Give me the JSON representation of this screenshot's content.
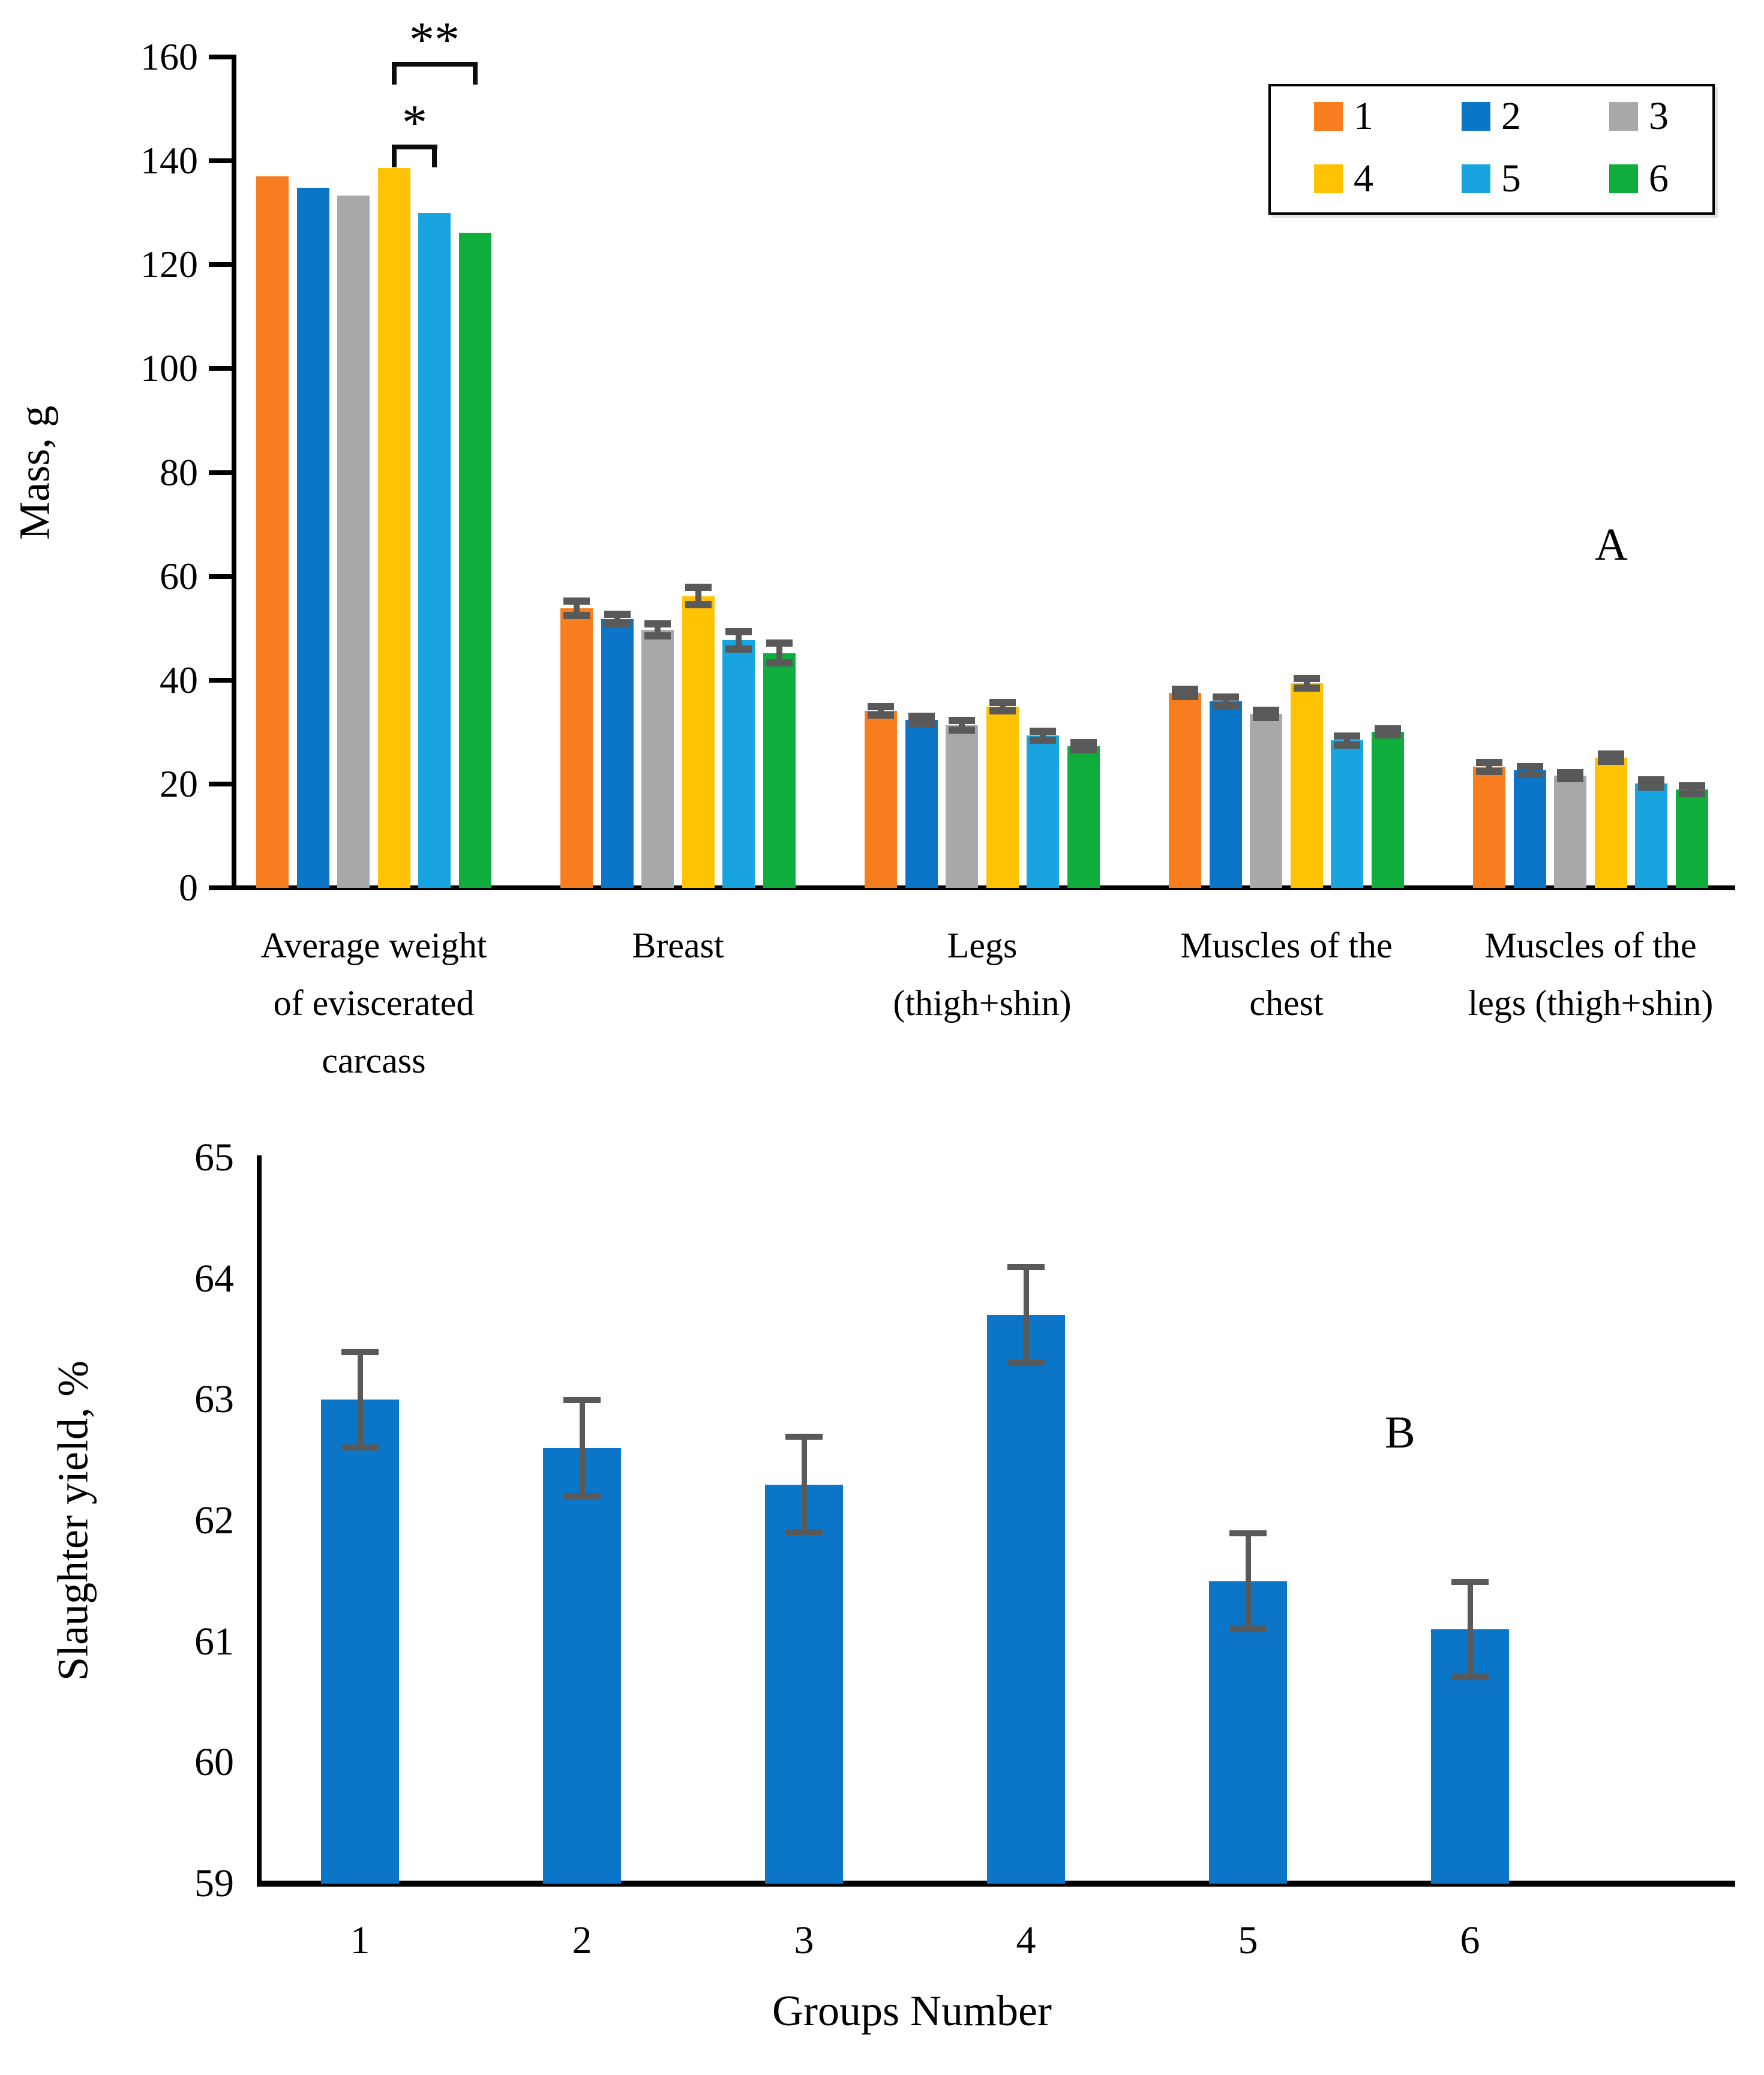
{
  "figure": {
    "panel_a_letter": "A",
    "panel_b_letter": "B",
    "mass_axis_title": "Mass, g",
    "yield_axis_title": "Slaughter yield, %",
    "groups_axis_title": "Groups Number"
  },
  "chart_data": [
    {
      "type": "bar",
      "panel": "A",
      "ylabel": "Mass, g",
      "ylim": [
        0,
        160
      ],
      "ytick_step": 20,
      "grid": false,
      "legend_position": "top-right",
      "series_names": [
        "1",
        "2",
        "3",
        "4",
        "5",
        "6"
      ],
      "series_colors": [
        "#F87D1E",
        "#0B76C8",
        "#A9A9A9",
        "#FFC303",
        "#18A4DE",
        "#0FAE3C"
      ],
      "error_color": "#595959",
      "categories": [
        {
          "label_lines": [
            "Average weight",
            "of eviscerated",
            "carcass"
          ],
          "values": [
            137.0,
            134.8,
            133.3,
            138.6,
            130.0,
            126.2
          ],
          "errors": [
            0,
            0,
            0,
            0,
            0,
            0
          ]
        },
        {
          "label_lines": [
            "Breast"
          ],
          "values": [
            53.8,
            51.8,
            49.7,
            56.2,
            47.7,
            45.2
          ],
          "errors": [
            1.5,
            1.0,
            1.3,
            1.8,
            1.8,
            2.0
          ]
        },
        {
          "label_lines": [
            "Legs",
            "(thigh+shin)"
          ],
          "values": [
            34.1,
            32.3,
            31.3,
            34.9,
            29.3,
            27.3
          ],
          "errors": [
            0.9,
            0.8,
            1.0,
            0.9,
            1.0,
            0.8
          ]
        },
        {
          "label_lines": [
            "Muscles of the",
            "chest"
          ],
          "values": [
            37.5,
            35.9,
            33.5,
            39.4,
            28.4,
            30.0
          ],
          "errors": [
            0.8,
            1.0,
            0.8,
            1.0,
            1.0,
            0.7
          ]
        },
        {
          "label_lines": [
            "Muscles of the",
            "legs (thigh+shin)"
          ],
          "values": [
            23.3,
            22.6,
            21.6,
            25.1,
            20.1,
            18.9
          ],
          "errors": [
            1.0,
            0.9,
            0.7,
            0.8,
            0.8,
            0.9
          ]
        }
      ],
      "significance": [
        {
          "label": "**",
          "category": 0,
          "from_series": 4,
          "to_series": 6,
          "level": 2
        },
        {
          "label": "*",
          "category": 0,
          "from_series": 4,
          "to_series": 5,
          "level": 1
        }
      ]
    },
    {
      "type": "bar",
      "panel": "B",
      "xlabel": "Groups Number",
      "ylabel": "Slaughter yield, %",
      "ylim": [
        59,
        65
      ],
      "ytick_step": 1,
      "grid": false,
      "categories": [
        "1",
        "2",
        "3",
        "4",
        "5",
        "6"
      ],
      "values": [
        63.0,
        62.6,
        62.3,
        63.7,
        61.5,
        61.1
      ],
      "errors": [
        0.4,
        0.4,
        0.4,
        0.4,
        0.4,
        0.4
      ],
      "bar_color": "#0B76C8",
      "error_color": "#595959"
    }
  ]
}
